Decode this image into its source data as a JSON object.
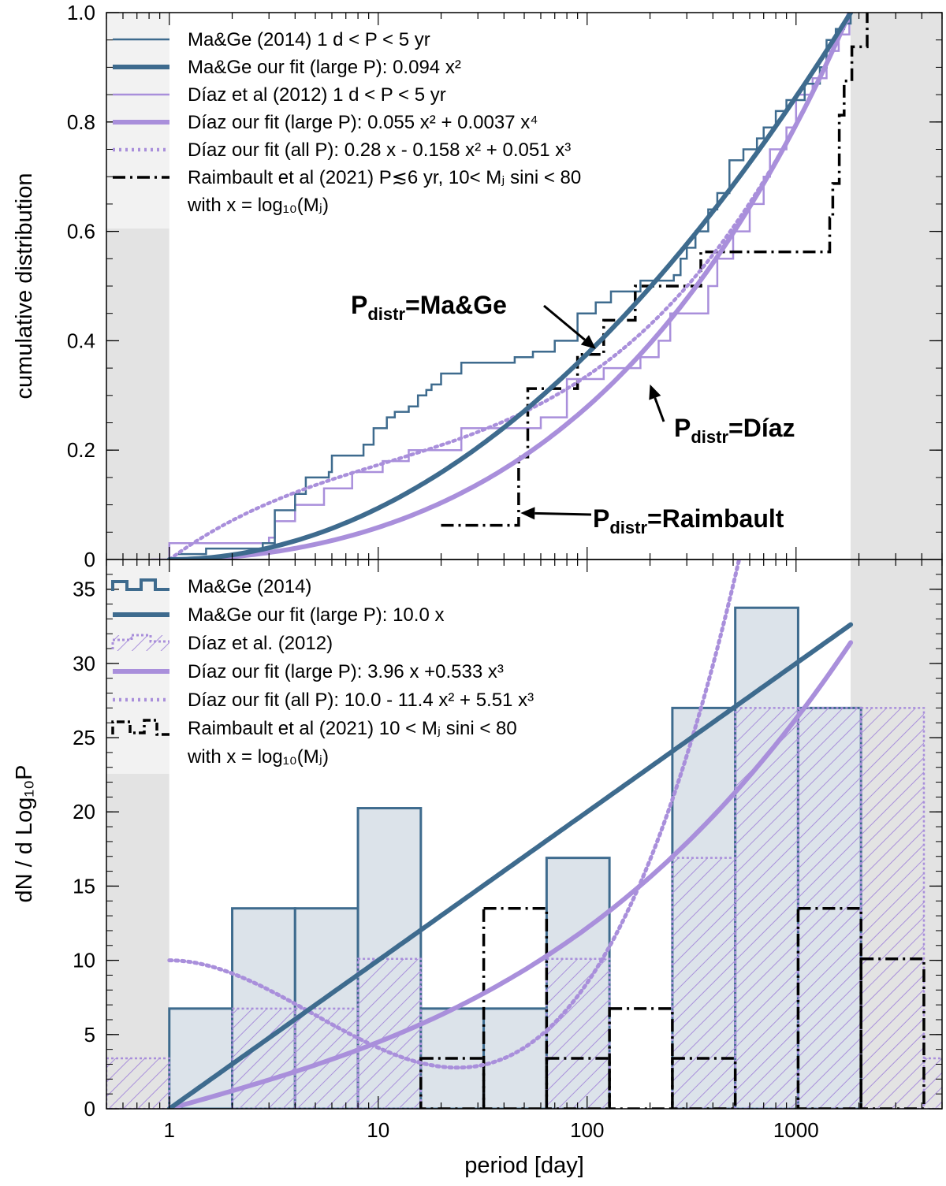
{
  "colors": {
    "mage": "#3e6b8e",
    "mage_fill": "#dce3ea",
    "diaz": "#a98fdb",
    "raim": "#000000",
    "shade": "#e3e3e3",
    "legend_bg": "#f2f2f2"
  },
  "chart_data": [
    {
      "type": "line",
      "panel": "top",
      "ylabel": "cumulative distribution",
      "xscale": "log",
      "xlim": [
        0.5,
        5000
      ],
      "ylim": [
        0,
        1.0
      ],
      "yticks": [
        "0",
        "0.2",
        "0.4",
        "0.6",
        "0.8",
        "1.0"
      ],
      "ytick_values": [
        0,
        0.2,
        0.4,
        0.6,
        0.8,
        1.0
      ],
      "shaded_x": [
        [
          0.5,
          1
        ],
        [
          1826,
          5000
        ]
      ],
      "legend": [
        {
          "text": "Ma&Ge (2014)     1 d < P < 5 yr",
          "style": "mage-thin"
        },
        {
          "text": "Ma&Ge our fit (large P): 0.094 x²",
          "style": "mage-thick"
        },
        {
          "text": "Díaz et al (2012) 1 d < P < 5 yr",
          "style": "diaz-thin"
        },
        {
          "text": "Díaz our fit (large P): 0.055 x² + 0.0037 x⁴",
          "style": "diaz-thick"
        },
        {
          "text": "Díaz our fit (all      P): 0.28 x - 0.158 x² + 0.051 x³",
          "style": "diaz-dotted"
        },
        {
          "text": "Raimbault et al (2021) P≲6 yr, 10< Mⱼ sini < 80",
          "style": "raim-dashdot"
        },
        {
          "text": "with x = log₁₀(Mⱼ)",
          "style": "none"
        }
      ],
      "annotations": [
        {
          "text": "P",
          "sub": "distr",
          "rest": "=Ma&Ge",
          "target": [
            110,
            0.385
          ]
        },
        {
          "text": "P",
          "sub": "distr",
          "rest": "=Díaz",
          "target": [
            200,
            0.32
          ]
        },
        {
          "text": "P",
          "sub": "distr",
          "rest": "=Raimbault",
          "target": [
            48,
            0.085
          ]
        }
      ],
      "series": [
        {
          "name": "Ma&Ge fit",
          "coeffs": {
            "x2": 0.094
          }
        },
        {
          "name": "Díaz fit large P",
          "coeffs": {
            "x2": 0.055,
            "x4": 0.0037
          }
        },
        {
          "name": "Díaz fit all P",
          "coeffs": {
            "x1": 0.28,
            "x2": -0.158,
            "x3": 0.051
          }
        },
        {
          "name": "Ma&Ge (2014) ECDF",
          "steps": [
            [
              1.5,
              0.02
            ],
            [
              2.8,
              0.03
            ],
            [
              3.2,
              0.09
            ],
            [
              4,
              0.12
            ],
            [
              4.5,
              0.15
            ],
            [
              5.8,
              0.16
            ],
            [
              6,
              0.19
            ],
            [
              8.5,
              0.21
            ],
            [
              9.5,
              0.24
            ],
            [
              11,
              0.26
            ],
            [
              12,
              0.27
            ],
            [
              14,
              0.28
            ],
            [
              15.5,
              0.3
            ],
            [
              17,
              0.31
            ],
            [
              18,
              0.32
            ],
            [
              20,
              0.34
            ],
            [
              25,
              0.36
            ],
            [
              45,
              0.37
            ],
            [
              55,
              0.38
            ],
            [
              70,
              0.4
            ],
            [
              90,
              0.45
            ],
            [
              110,
              0.47
            ],
            [
              130,
              0.49
            ],
            [
              180,
              0.51
            ],
            [
              260,
              0.52
            ],
            [
              280,
              0.55
            ],
            [
              300,
              0.57
            ],
            [
              330,
              0.6
            ],
            [
              380,
              0.64
            ],
            [
              420,
              0.67
            ],
            [
              480,
              0.73
            ],
            [
              560,
              0.75
            ],
            [
              650,
              0.77
            ],
            [
              700,
              0.79
            ],
            [
              800,
              0.82
            ],
            [
              900,
              0.84
            ],
            [
              1100,
              0.87
            ],
            [
              1300,
              0.9
            ],
            [
              1400,
              0.95
            ],
            [
              1550,
              0.97
            ],
            [
              1700,
              0.98
            ],
            [
              1826,
              1.0
            ]
          ]
        },
        {
          "name": "Díaz et al (2012) ECDF",
          "steps": [
            [
              1,
              0.03
            ],
            [
              3,
              0.04
            ],
            [
              3.2,
              0.07
            ],
            [
              4,
              0.1
            ],
            [
              5.5,
              0.13
            ],
            [
              7.5,
              0.16
            ],
            [
              10.5,
              0.18
            ],
            [
              14,
              0.2
            ],
            [
              25,
              0.24
            ],
            [
              60,
              0.26
            ],
            [
              80,
              0.33
            ],
            [
              120,
              0.35
            ],
            [
              180,
              0.37
            ],
            [
              220,
              0.4
            ],
            [
              250,
              0.45
            ],
            [
              380,
              0.5
            ],
            [
              420,
              0.55
            ],
            [
              500,
              0.6
            ],
            [
              600,
              0.65
            ],
            [
              700,
              0.7
            ],
            [
              750,
              0.75
            ],
            [
              900,
              0.79
            ],
            [
              1000,
              0.85
            ],
            [
              1200,
              0.88
            ],
            [
              1400,
              0.93
            ],
            [
              1600,
              0.96
            ],
            [
              1800,
              1.0
            ]
          ]
        },
        {
          "name": "Raimbault et al (2021) ECDF",
          "steps": [
            [
              20,
              0.0625
            ],
            [
              47,
              0.1875
            ],
            [
              52,
              0.3125
            ],
            [
              90,
              0.375
            ],
            [
              120,
              0.4375
            ],
            [
              170,
              0.5
            ],
            [
              350,
              0.5625
            ],
            [
              1450,
              0.625
            ],
            [
              1500,
              0.6875
            ],
            [
              1610,
              0.8125
            ],
            [
              1700,
              0.875
            ],
            [
              1850,
              0.9375
            ],
            [
              2190,
              1.0
            ]
          ]
        }
      ]
    },
    {
      "type": "bar",
      "panel": "bottom",
      "xlabel": "period [day]",
      "ylabel": "dN / d Log₁₀P",
      "xscale": "log",
      "xlim": [
        0.5,
        5000
      ],
      "ylim": [
        0,
        37
      ],
      "xticks": [
        "1",
        "10",
        "100",
        "1000"
      ],
      "xtick_values": [
        1,
        10,
        100,
        1000
      ],
      "yticks": [
        "0",
        "5",
        "10",
        "15",
        "20",
        "25",
        "30",
        "35"
      ],
      "ytick_values": [
        0,
        5,
        10,
        15,
        20,
        25,
        30,
        35
      ],
      "legend": [
        {
          "text": "Ma&Ge (2014)",
          "style": "mage-hist"
        },
        {
          "text": "Ma&Ge our fit (large P): 10.0 x",
          "style": "mage-thick"
        },
        {
          "text": "Díaz et al. (2012)",
          "style": "diaz-hist"
        },
        {
          "text": "Díaz our fit (large P): 3.96 x +0.533 x³",
          "style": "diaz-thick"
        },
        {
          "text": "Díaz our fit (all      P): 10.0 - 11.4 x² + 5.51 x³",
          "style": "diaz-dotted"
        },
        {
          "text": "Raimbault et al (2021) 10 < Mⱼ sini < 80",
          "style": "raim-hist"
        },
        {
          "text": "with x = log₁₀(Mⱼ)",
          "style": "none"
        }
      ],
      "bin_edges_logP": [
        -0.301,
        0.0,
        0.301,
        0.602,
        0.903,
        1.204,
        1.505,
        1.806,
        2.107,
        2.408,
        2.709,
        3.01,
        3.311,
        3.612,
        3.913
      ],
      "series": [
        {
          "name": "Ma&Ge (2014)",
          "values": [
            0,
            6.75,
            13.5,
            13.5,
            20.25,
            6.75,
            6.75,
            16.9,
            0,
            27,
            33.75,
            27,
            0,
            0
          ]
        },
        {
          "name": "Díaz et al. (2012)",
          "values": [
            3.4,
            0,
            6.75,
            6.75,
            10.1,
            0,
            0,
            10.1,
            0,
            16.9,
            27,
            27,
            27,
            3.4
          ]
        },
        {
          "name": "Raimbault et al (2021)",
          "values": [
            0,
            0,
            0,
            0,
            0,
            3.4,
            13.5,
            3.4,
            6.75,
            3.4,
            0,
            13.5,
            10.1,
            0
          ]
        },
        {
          "name": "Ma&Ge fit",
          "coeffs": {
            "x1": 10.0
          }
        },
        {
          "name": "Díaz fit large P",
          "coeffs": {
            "x1": 3.96,
            "x3": 0.533
          }
        },
        {
          "name": "Díaz fit all P",
          "coeffs": {
            "x0": 10.0,
            "x2": -11.4,
            "x3": 5.51
          }
        }
      ]
    }
  ]
}
